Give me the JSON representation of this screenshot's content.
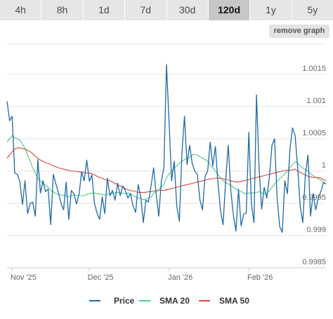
{
  "range_tabs": [
    {
      "label": "4h",
      "active": false
    },
    {
      "label": "8h",
      "active": false
    },
    {
      "label": "1d",
      "active": false
    },
    {
      "label": "7d",
      "active": false
    },
    {
      "label": "30d",
      "active": false
    },
    {
      "label": "120d",
      "active": true
    },
    {
      "label": "1y",
      "active": false
    },
    {
      "label": "5y",
      "active": false
    }
  ],
  "remove_graph_label": "remove graph",
  "colors": {
    "price": "#1f6aa5",
    "sma20": "#4dcb82",
    "sma50": "#d9463b",
    "grid": "#e6e6e6"
  },
  "chart_data": {
    "type": "line",
    "ylim": [
      0.9985,
      1.002
    ],
    "y_ticks": [
      {
        "value": 0.9985,
        "label": "0.9985"
      },
      {
        "value": 0.999,
        "label": "0.999"
      },
      {
        "value": 0.9995,
        "label": "0.9995"
      },
      {
        "value": 1.0,
        "label": "1"
      },
      {
        "value": 1.0005,
        "label": "1.0005"
      },
      {
        "value": 1.001,
        "label": "1.001"
      },
      {
        "value": 1.0015,
        "label": "1.0015"
      }
    ],
    "x_ticks": [
      {
        "day": 2,
        "label": "Nov '25"
      },
      {
        "day": 32,
        "label": "Dec '25"
      },
      {
        "day": 63,
        "label": "Jan '26"
      },
      {
        "day": 94,
        "label": "Feb '26"
      }
    ],
    "x_range": [
      0,
      124
    ],
    "series": [
      {
        "name": "Price",
        "color": "#1f6aa5",
        "values": [
          1.00108,
          1.00078,
          1.00085,
          0.99997,
          0.99995,
          0.99983,
          0.99948,
          0.99985,
          0.99934,
          0.9995,
          0.99952,
          0.9993,
          1.00018,
          0.99966,
          0.99985,
          0.99968,
          0.99972,
          0.99917,
          0.99995,
          0.9998,
          0.99966,
          0.9995,
          0.9994,
          0.99983,
          0.99925,
          0.9997,
          0.99965,
          0.99949,
          0.99964,
          0.99999,
          0.99985,
          1.00017,
          0.99984,
          0.99994,
          0.9995,
          0.99935,
          0.99925,
          0.9996,
          0.99934,
          0.99989,
          0.99962,
          0.9997,
          0.99955,
          0.99981,
          0.99962,
          0.99977,
          0.9997,
          0.99958,
          0.99965,
          0.99946,
          0.99936,
          0.99979,
          0.9996,
          0.9992,
          0.99955,
          0.99952,
          0.99977,
          1.00005,
          0.99963,
          0.9993,
          0.99985,
          1.00005,
          1.00165,
          1.00075,
          0.99985,
          1.00015,
          0.99946,
          0.99922,
          1.00028,
          1.00085,
          1.0001,
          1.0004,
          1.00012,
          1.0,
          0.99995,
          0.99955,
          0.9994,
          0.99992,
          1.0,
          1.00045,
          1.00008,
          1.00038,
          0.99982,
          0.99939,
          0.99917,
          0.99985,
          1.0004,
          0.9997,
          0.99932,
          0.99907,
          0.99972,
          0.99915,
          0.99933,
          0.99935,
          1.0006,
          0.9995,
          0.9992,
          1.00118,
          1.00005,
          0.99941,
          0.99975,
          0.99958,
          0.99991,
          1.0004,
          1.0005,
          0.9996,
          0.99914,
          0.99905,
          0.99985,
          0.99965,
          1.00034,
          1.00067,
          1.00055,
          1.00005,
          0.99945,
          0.9992,
          0.99995,
          1.00025,
          0.9993,
          0.99965,
          0.9994,
          0.99958,
          0.99968,
          0.99982,
          0.9998
        ]
      },
      {
        "name": "SMA 20",
        "color": "#4dcb82",
        "values": [
          1.00045,
          1.0005,
          1.00055,
          1.00052,
          1.0005,
          1.00048,
          1.00042,
          1.00035,
          1.00025,
          1.00015,
          1.00005,
          0.99997,
          0.99988,
          0.99985,
          0.9998,
          0.99978,
          0.99975,
          0.9997,
          0.99968,
          0.99965,
          0.99964,
          0.99963,
          0.99962,
          0.99962,
          0.9996,
          0.99962,
          0.99963,
          0.99962,
          0.99962,
          0.99962,
          0.99962,
          0.99964,
          0.99965,
          0.99966,
          0.99966,
          0.99965,
          0.99964,
          0.99964,
          0.99963,
          0.99964,
          0.99965,
          0.99966,
          0.99966,
          0.99967,
          0.99966,
          0.99966,
          0.99965,
          0.99966,
          0.99965,
          0.99962,
          0.9996,
          0.99958,
          0.99957,
          0.99956,
          0.99956,
          0.99958,
          0.9996,
          0.99965,
          0.99968,
          0.99972,
          0.99975,
          0.9998,
          0.9999,
          0.99995,
          1.0,
          1.00005,
          1.00008,
          1.00012,
          1.00015,
          1.00018,
          1.0002,
          1.00022,
          1.00025,
          1.00026,
          1.00025,
          1.00022,
          1.0002,
          1.00018,
          1.00015,
          1.0001,
          1.00005,
          1.0,
          0.99995,
          0.9999,
          0.99985,
          0.99982,
          0.9998,
          0.99978,
          0.99975,
          0.99972,
          0.9997,
          0.99968,
          0.99966,
          0.99965,
          0.99966,
          0.99966,
          0.99966,
          0.99967,
          0.99968,
          0.99966,
          0.99965,
          0.99966,
          0.9997,
          0.99975,
          0.9998,
          0.99984,
          0.99988,
          0.99992,
          0.99996,
          1.0,
          1.00005,
          1.0001,
          1.00015,
          1.00012,
          1.00008,
          1.00005,
          1.00002,
          1.0,
          0.99996,
          0.99993,
          0.9999,
          0.99988,
          0.99986,
          0.99983,
          0.9998
        ]
      },
      {
        "name": "SMA 50",
        "color": "#d9463b",
        "values": [
          1.0002,
          1.00025,
          1.0003,
          1.00034,
          1.00036,
          1.00036,
          1.00035,
          1.00034,
          1.00032,
          1.0003,
          1.00027,
          1.00023,
          1.0002,
          1.00017,
          1.00015,
          1.00013,
          1.00012,
          1.0001,
          1.00008,
          1.00007,
          1.00005,
          1.00004,
          1.00003,
          1.00002,
          1.00001,
          1.0,
          1.0,
          0.99999,
          0.99999,
          0.99998,
          0.99998,
          0.99997,
          0.99997,
          0.99996,
          0.99994,
          0.99992,
          0.9999,
          0.99989,
          0.99987,
          0.99986,
          0.99985,
          0.99983,
          0.99981,
          0.99979,
          0.99977,
          0.99975,
          0.99973,
          0.99971,
          0.9997,
          0.99969,
          0.99968,
          0.99967,
          0.99967,
          0.99967,
          0.99967,
          0.99968,
          0.99968,
          0.99969,
          0.99969,
          0.9997,
          0.9997,
          0.9997,
          0.99971,
          0.99972,
          0.99973,
          0.99974,
          0.99975,
          0.99976,
          0.99977,
          0.99978,
          0.99979,
          0.9998,
          0.99981,
          0.99982,
          0.99983,
          0.99984,
          0.99985,
          0.99986,
          0.99987,
          0.99988,
          0.99988,
          0.99989,
          0.99989,
          0.99989,
          0.99988,
          0.99987,
          0.99986,
          0.99985,
          0.99984,
          0.99983,
          0.99983,
          0.99984,
          0.99985,
          0.99986,
          0.99987,
          0.99988,
          0.99989,
          0.9999,
          0.99991,
          0.99992,
          0.99993,
          0.99994,
          0.99995,
          0.99996,
          0.99997,
          0.99998,
          0.99999,
          1.0,
          1.00001,
          1.00001,
          1.00001,
          1.00002,
          1.00003,
          1.0,
          0.99998,
          0.99996,
          0.99994,
          0.99992,
          0.99991,
          0.9999,
          0.9999,
          0.9999,
          0.99989,
          0.99987,
          0.99985
        ]
      }
    ],
    "legend": [
      "Price",
      "SMA 20",
      "SMA 50"
    ],
    "legend_position": "bottom-center",
    "grid": true
  }
}
